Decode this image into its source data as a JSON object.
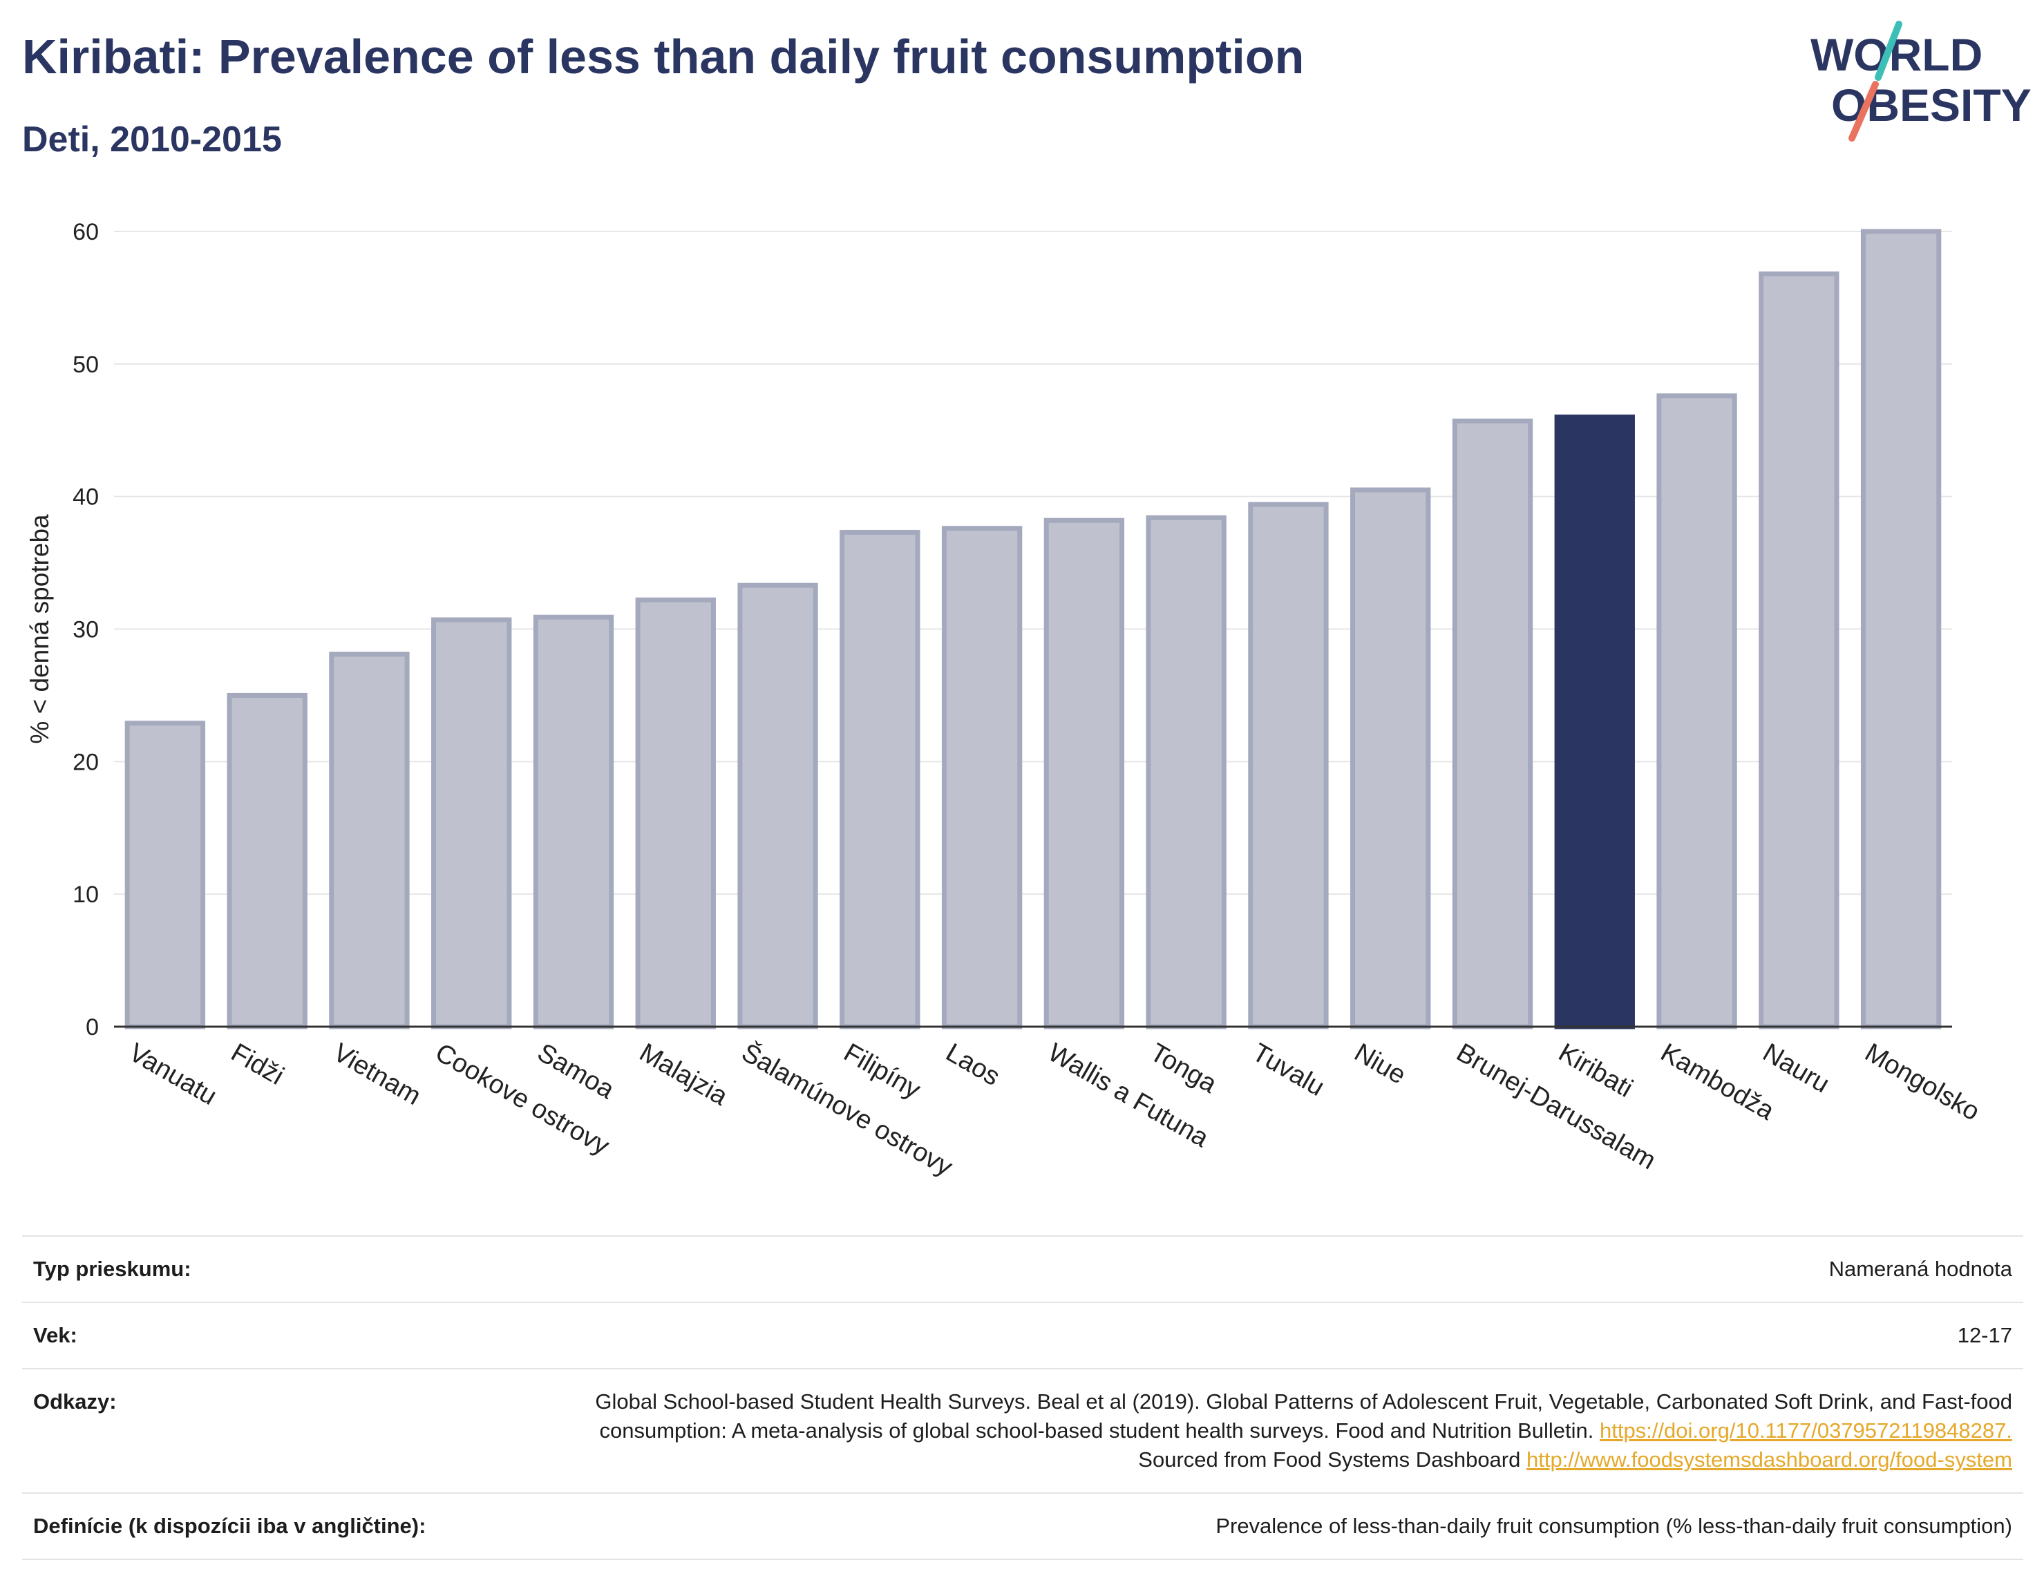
{
  "header": {
    "title": "Kiribati: Prevalence of less than daily fruit consumption",
    "subtitle": "Deti, 2010-2015",
    "logo_line1": "WORLD",
    "logo_line2": "OBESITY"
  },
  "colors": {
    "title": "#2a3561",
    "bar": "#bfc2ce",
    "bar_border": "#a4a9bd",
    "highlight": "#2a3561",
    "logo_teal": "#3dbfb8",
    "logo_coral": "#e9735e"
  },
  "chart_data": {
    "type": "bar",
    "title": "Kiribati: Prevalence of less than daily fruit consumption",
    "subtitle": "Deti, 2010-2015",
    "xlabel": "",
    "ylabel": "% < denná spotreba",
    "ylim": [
      0,
      60
    ],
    "yticks": [
      0,
      10,
      20,
      30,
      40,
      50,
      60
    ],
    "grid": true,
    "legend": "none",
    "highlight": "Kiribati",
    "categories": [
      "Vanuatu",
      "Fidži",
      "Vietnam",
      "Cookove ostrovy",
      "Samoa",
      "Malajzia",
      "Šalamúnove ostrovy",
      "Filipíny",
      "Laos",
      "Wallis a Futuna",
      "Tonga",
      "Tuvalu",
      "Niue",
      "Brunej-Darussalam",
      "Kiribati",
      "Kambodža",
      "Nauru",
      "Mongolsko"
    ],
    "values": [
      22.9,
      25.0,
      28.1,
      30.7,
      30.9,
      32.2,
      33.3,
      37.3,
      37.6,
      38.2,
      38.4,
      39.4,
      40.5,
      45.7,
      46.0,
      47.6,
      56.8,
      60.0
    ]
  },
  "meta": {
    "survey_type_label": "Typ prieskumu:",
    "survey_type_value": "Nameraná hodnota",
    "age_label": "Vek:",
    "age_value": "12-17",
    "refs_label": "Odkazy:",
    "refs_text1": "Global School-based Student Health Surveys. Beal et al (2019). Global Patterns of Adolescent Fruit, Vegetable, Carbonated Soft Drink, and Fast-food consumption: A meta-analysis of global school-based student health surveys. Food and Nutrition Bulletin.",
    "refs_link1": "https://doi.org/10.1177/0379572119848287.",
    "refs_text2": "Sourced from Food Systems Dashboard",
    "refs_link2": "http://www.foodsystemsdashboard.org/food-system",
    "def_label": "Definície (k dispozícii iba v angličtine):",
    "def_value": "Prevalence of less-than-daily fruit consumption (% less-than-daily fruit consumption)"
  }
}
